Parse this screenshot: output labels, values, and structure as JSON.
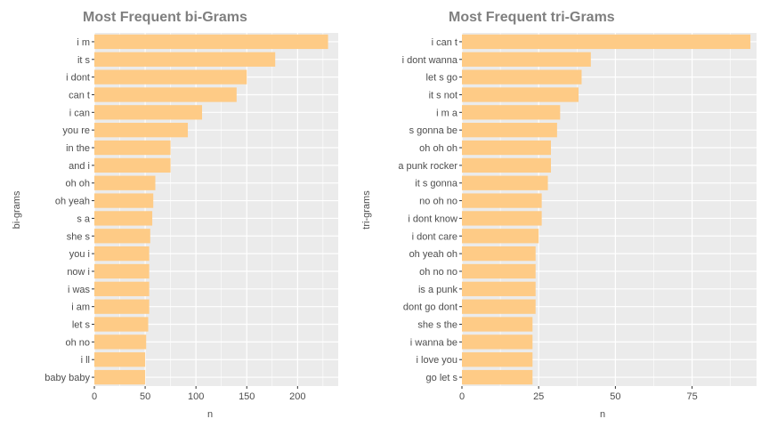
{
  "chart_data": [
    {
      "type": "bar",
      "orientation": "horizontal",
      "title": "Most Frequent bi-Grams",
      "xlabel": "n",
      "ylabel": "bi-grams",
      "xlim": [
        0,
        240
      ],
      "xticks": [
        0,
        50,
        100,
        150,
        200
      ],
      "grid": true,
      "bar_color": "#FECB86",
      "panel_color": "#EBEBEB",
      "categories": [
        "i m",
        "it s",
        "i dont",
        "can t",
        "i can",
        "you re",
        "in the",
        "and i",
        "oh oh",
        "oh yeah",
        "s a",
        "she s",
        "you i",
        "now i",
        "i was",
        "i am",
        "let s",
        "oh no",
        "i ll",
        "baby baby"
      ],
      "values": [
        230,
        178,
        150,
        140,
        106,
        92,
        75,
        75,
        60,
        58,
        57,
        55,
        54,
        54,
        54,
        54,
        53,
        51,
        50,
        50
      ]
    },
    {
      "type": "bar",
      "orientation": "horizontal",
      "title": "Most Frequent tri-Grams",
      "xlabel": "n",
      "ylabel": "tri-grams",
      "xlim": [
        0,
        96
      ],
      "xticks": [
        0,
        25,
        50,
        75
      ],
      "grid": true,
      "bar_color": "#FECB86",
      "panel_color": "#EBEBEB",
      "categories": [
        "i can t",
        "i dont wanna",
        "let s go",
        "it s not",
        "i m a",
        "s gonna be",
        "oh oh oh",
        "a punk rocker",
        "it s gonna",
        "no oh no",
        "i dont know",
        "i dont care",
        "oh yeah oh",
        "oh no no",
        "is a punk",
        "dont go dont",
        "she s the",
        "i wanna be",
        "i love you",
        "go let s"
      ],
      "values": [
        94,
        42,
        39,
        38,
        32,
        31,
        29,
        29,
        28,
        26,
        26,
        25,
        24,
        24,
        24,
        24,
        23,
        23,
        23,
        23
      ]
    }
  ]
}
